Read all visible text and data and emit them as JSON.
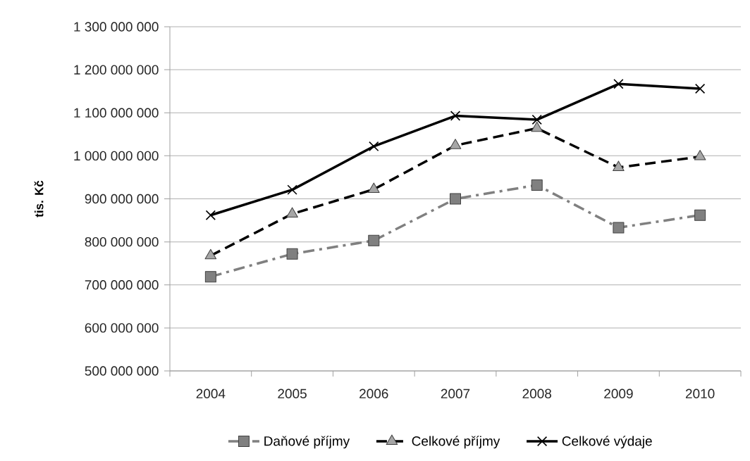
{
  "chart_data": {
    "type": "line",
    "ylabel": "tis. Kč",
    "categories": [
      "2004",
      "2005",
      "2006",
      "2007",
      "2008",
      "2009",
      "2010"
    ],
    "series": [
      {
        "name": "Daňové příjmy",
        "color": "#808080",
        "marker": "square",
        "line_style": "dashdot",
        "values": [
          719000000,
          772000000,
          803000000,
          900000000,
          932000000,
          833000000,
          862000000
        ]
      },
      {
        "name": "Celkové příjmy",
        "color": "#000000",
        "marker": "triangle",
        "line_style": "dashed",
        "values": [
          768000000,
          865000000,
          922000000,
          1024000000,
          1064000000,
          973000000,
          998000000
        ]
      },
      {
        "name": "Celkové výdaje",
        "color": "#000000",
        "marker": "cross",
        "line_style": "solid",
        "values": [
          862000000,
          921000000,
          1022000000,
          1093000000,
          1084000000,
          1167000000,
          1156000000
        ]
      }
    ],
    "ylim": [
      500000000,
      1300000000
    ],
    "yticks": [
      {
        "value": 500000000,
        "label": "500 000 000"
      },
      {
        "value": 600000000,
        "label": "600 000 000"
      },
      {
        "value": 700000000,
        "label": "700 000 000"
      },
      {
        "value": 800000000,
        "label": "800 000 000"
      },
      {
        "value": 900000000,
        "label": "900 000 000"
      },
      {
        "value": 1000000000,
        "label": "1 000 000 000"
      },
      {
        "value": 1100000000,
        "label": "1 100 000 000"
      },
      {
        "value": 1200000000,
        "label": "1 200 000 000"
      },
      {
        "value": 1300000000,
        "label": "1 300 000 000"
      }
    ],
    "grid": "y",
    "legend": "bottom"
  }
}
